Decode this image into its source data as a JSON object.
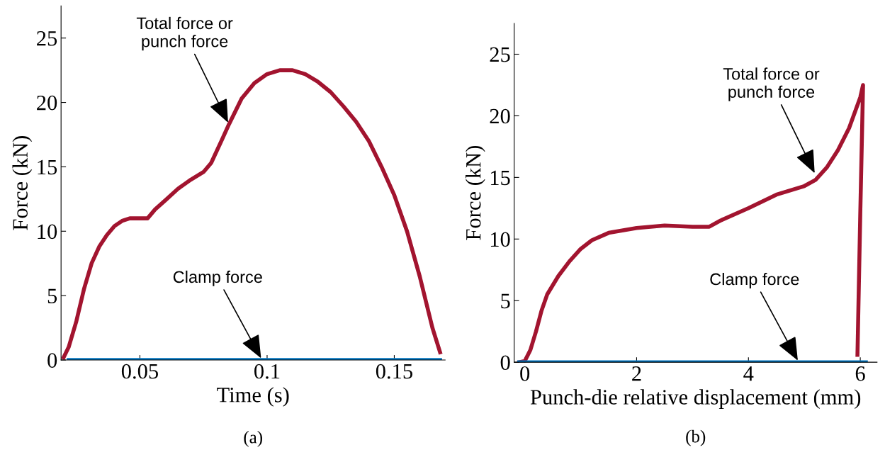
{
  "chart_data": [
    {
      "type": "line",
      "xlabel": "Time (s)",
      "ylabel": "Force (kN)",
      "xlim": [
        0.019,
        0.17
      ],
      "ylim": [
        0,
        27.5
      ],
      "xticks": [
        0.05,
        0.1,
        0.15
      ],
      "yticks": [
        0,
        5,
        10,
        15,
        20,
        25
      ],
      "grid": false,
      "legend": false,
      "line_style": "solid",
      "series": [
        {
          "color": "#a2142f",
          "x": [
            0.02,
            0.022,
            0.025,
            0.028,
            0.031,
            0.034,
            0.037,
            0.04,
            0.043,
            0.046,
            0.05,
            0.053,
            0.056,
            0.06,
            0.065,
            0.07,
            0.075,
            0.078,
            0.082,
            0.085,
            0.09,
            0.095,
            0.1,
            0.105,
            0.11,
            0.115,
            0.12,
            0.125,
            0.13,
            0.135,
            0.14,
            0.145,
            0.15,
            0.155,
            0.16,
            0.165,
            0.168
          ],
          "values": [
            0.2,
            1,
            3,
            5.5,
            7.5,
            8.8,
            9.7,
            10.4,
            10.8,
            11.0,
            11.0,
            11.0,
            11.7,
            12.4,
            13.3,
            14.0,
            14.6,
            15.3,
            17,
            18.3,
            20.3,
            21.5,
            22.2,
            22.5,
            22.5,
            22.2,
            21.6,
            20.8,
            19.7,
            18.5,
            17.0,
            15,
            12.8,
            10,
            6.5,
            2.5,
            0.6
          ]
        },
        {
          "color": "#0072bd",
          "x": [
            0.022,
            0.05,
            0.1,
            0.15,
            0.168
          ],
          "values": [
            0,
            0,
            0,
            0,
            0
          ]
        }
      ],
      "annotations": [
        {
          "text": "Total force or\npunch force",
          "x": 0.085,
          "y": 18.3
        },
        {
          "text": "Clamp force",
          "x": 0.098,
          "y": 0
        },
        "(a)"
      ]
    },
    {
      "type": "line",
      "xlabel": "Punch-die relative displacement (mm)",
      "ylabel": "Force (kN)",
      "xlim": [
        -0.19,
        6.3
      ],
      "ylim": [
        0,
        27.5
      ],
      "xticks": [
        0,
        2,
        4,
        6
      ],
      "yticks": [
        0,
        5,
        10,
        15,
        20,
        25
      ],
      "grid": false,
      "legend": false,
      "line_style": "solid",
      "series": [
        {
          "color": "#a2142f",
          "x": [
            -0.1,
            0.0,
            0.1,
            0.2,
            0.3,
            0.4,
            0.6,
            0.8,
            1.0,
            1.2,
            1.5,
            2.0,
            2.5,
            3.0,
            3.3,
            3.5,
            4.0,
            4.5,
            5.0,
            5.2,
            5.4,
            5.6,
            5.8,
            6.0,
            6.05,
            6.0,
            5.95
          ],
          "values": [
            0,
            0.1,
            1,
            2.5,
            4.2,
            5.5,
            7,
            8.2,
            9.2,
            9.9,
            10.5,
            10.9,
            11.1,
            11.0,
            11.0,
            11.5,
            12.5,
            13.6,
            14.3,
            14.8,
            15.8,
            17.2,
            19,
            21.5,
            22.5,
            12,
            0.6
          ]
        },
        {
          "color": "#0072bd",
          "x": [
            -0.1,
            2,
            4,
            6.1
          ],
          "values": [
            0,
            0,
            0,
            0
          ]
        }
      ],
      "annotations": [
        {
          "text": "Total force or\npunch force",
          "x": 5.2,
          "y": 15.2
        },
        {
          "text": "Clamp force",
          "x": 4.9,
          "y": 0
        },
        "(b)"
      ]
    }
  ]
}
